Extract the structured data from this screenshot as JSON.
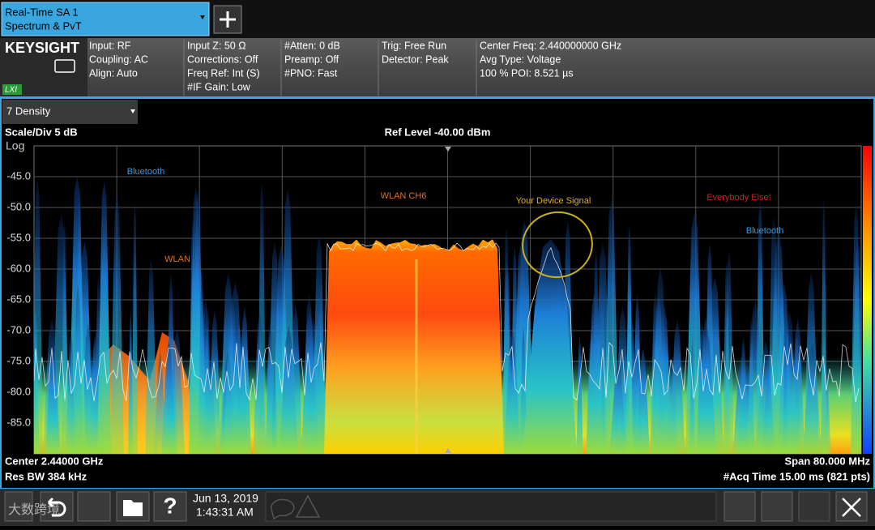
{
  "tab": {
    "line1": "Real-Time SA 1",
    "line2": "Spectrum & PvT"
  },
  "logo": {
    "brand": "KEYSIGHT",
    "badge": "LXI"
  },
  "settings": [
    [
      "Input: RF",
      "Coupling: AC",
      "Align: Auto"
    ],
    [
      "Input Z: 50 Ω",
      "Corrections: Off",
      "Freq Ref: Int (S)",
      "#IF Gain: Low"
    ],
    [
      "#Atten: 0 dB",
      "Preamp: Off",
      "#PNO: Fast"
    ],
    [
      "Trig: Free Run",
      "Detector: Peak"
    ],
    [
      "Center Freq: 2.440000000 GHz",
      "Avg Type: Voltage",
      "100 % POI: 8.521 µs"
    ]
  ],
  "view": "7 Density",
  "plot": {
    "scale": "Scale/Div 5 dB",
    "ref_level": "Ref Level -40.00 dBm",
    "scale_type": "Log",
    "yticks": [
      "-45.0",
      "-50.0",
      "-55.0",
      "-60.0",
      "-65.0",
      "-70.0",
      "-75.0",
      "-80.0",
      "-85.0"
    ],
    "annotations": [
      "Bluetooth",
      "WLAN CH6",
      "Your Device Signal",
      "Everybody Else!",
      "Bluetooth",
      "WLAN"
    ]
  },
  "footer": {
    "center": "Center 2.44000 GHz",
    "span": "Span 80.000 MHz",
    "rbw": "Res BW 384 kHz",
    "acq": "#Acq Time 15.00 ms (821 pts)"
  },
  "taskbar": {
    "help": "?",
    "date": "Jun 13, 2019",
    "time": "1:43:31 AM"
  },
  "watermark": "大数跨境"
}
